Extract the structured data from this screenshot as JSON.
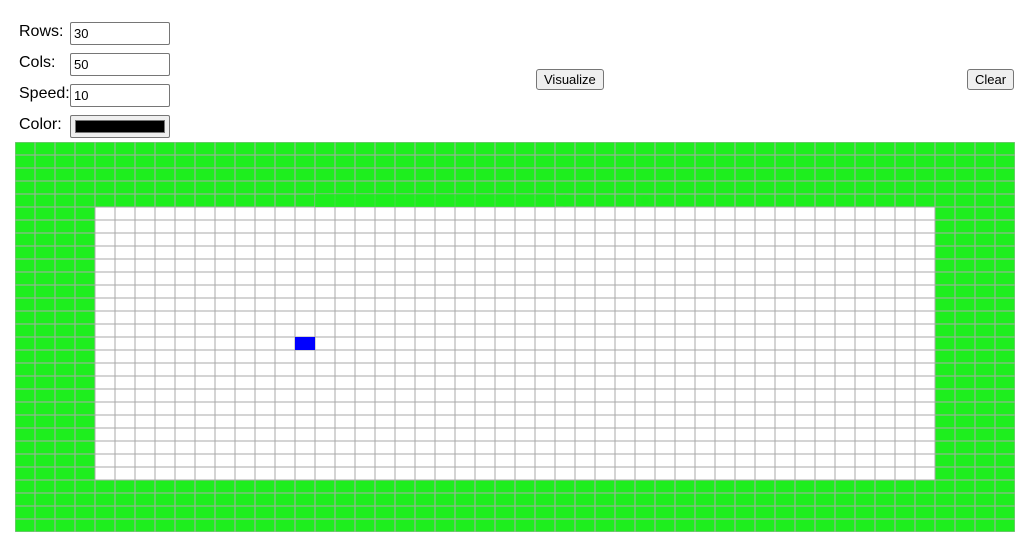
{
  "controls": {
    "rows_label": "Rows:",
    "rows_value": "30",
    "cols_label": "Cols:",
    "cols_value": "50",
    "speed_label": "Speed:",
    "speed_value": "10",
    "color_label": "Color:",
    "color_value": "#000000"
  },
  "buttons": {
    "visualize_label": "Visualize",
    "clear_label": "Clear"
  },
  "grid": {
    "rows": 30,
    "cols": 50,
    "colors": {
      "visited": "#1eee1e",
      "empty": "#ffffff",
      "current": "#0000ff",
      "line": "#a9a9a9"
    },
    "visited_border": {
      "top_rows": 5,
      "bottom_rows": 4,
      "left_cols": 4,
      "right_cols": 4
    },
    "current_cell": {
      "row": 15,
      "col": 14
    },
    "animating_trail": [
      {
        "row": 4,
        "col": 15,
        "opacity": 0.7
      },
      {
        "row": 4,
        "col": 16,
        "opacity": 0.7
      },
      {
        "row": 4,
        "col": 17,
        "opacity": 0.7
      },
      {
        "row": 4,
        "col": 18,
        "opacity": 0.68
      },
      {
        "row": 4,
        "col": 19,
        "opacity": 0.66
      },
      {
        "row": 4,
        "col": 20,
        "opacity": 0.64
      },
      {
        "row": 4,
        "col": 21,
        "opacity": 0.62
      },
      {
        "row": 4,
        "col": 22,
        "opacity": 0.6
      },
      {
        "row": 4,
        "col": 23,
        "opacity": 0.58
      },
      {
        "row": 4,
        "col": 24,
        "opacity": 0.55
      },
      {
        "row": 4,
        "col": 25,
        "opacity": 0.52
      },
      {
        "row": 4,
        "col": 26,
        "opacity": 0.48
      },
      {
        "row": 4,
        "col": 27,
        "opacity": 0.44,
        "shape": "circle",
        "scale": 0.95
      },
      {
        "row": 4,
        "col": 28,
        "opacity": 0.4,
        "shape": "circle",
        "scale": 0.85
      },
      {
        "row": 4,
        "col": 29,
        "opacity": 0.36,
        "shape": "circle",
        "scale": 0.8
      },
      {
        "row": 4,
        "col": 30,
        "opacity": 0.32,
        "shape": "circle",
        "scale": 0.75
      },
      {
        "row": 4,
        "col": 31,
        "opacity": 0.28,
        "shape": "circle",
        "scale": 0.65
      },
      {
        "row": 4,
        "col": 32,
        "opacity": 0.24,
        "shape": "circle",
        "scale": 0.6
      },
      {
        "row": 4,
        "col": 33,
        "opacity": 0.2,
        "shape": "circle",
        "scale": 0.5
      }
    ]
  }
}
